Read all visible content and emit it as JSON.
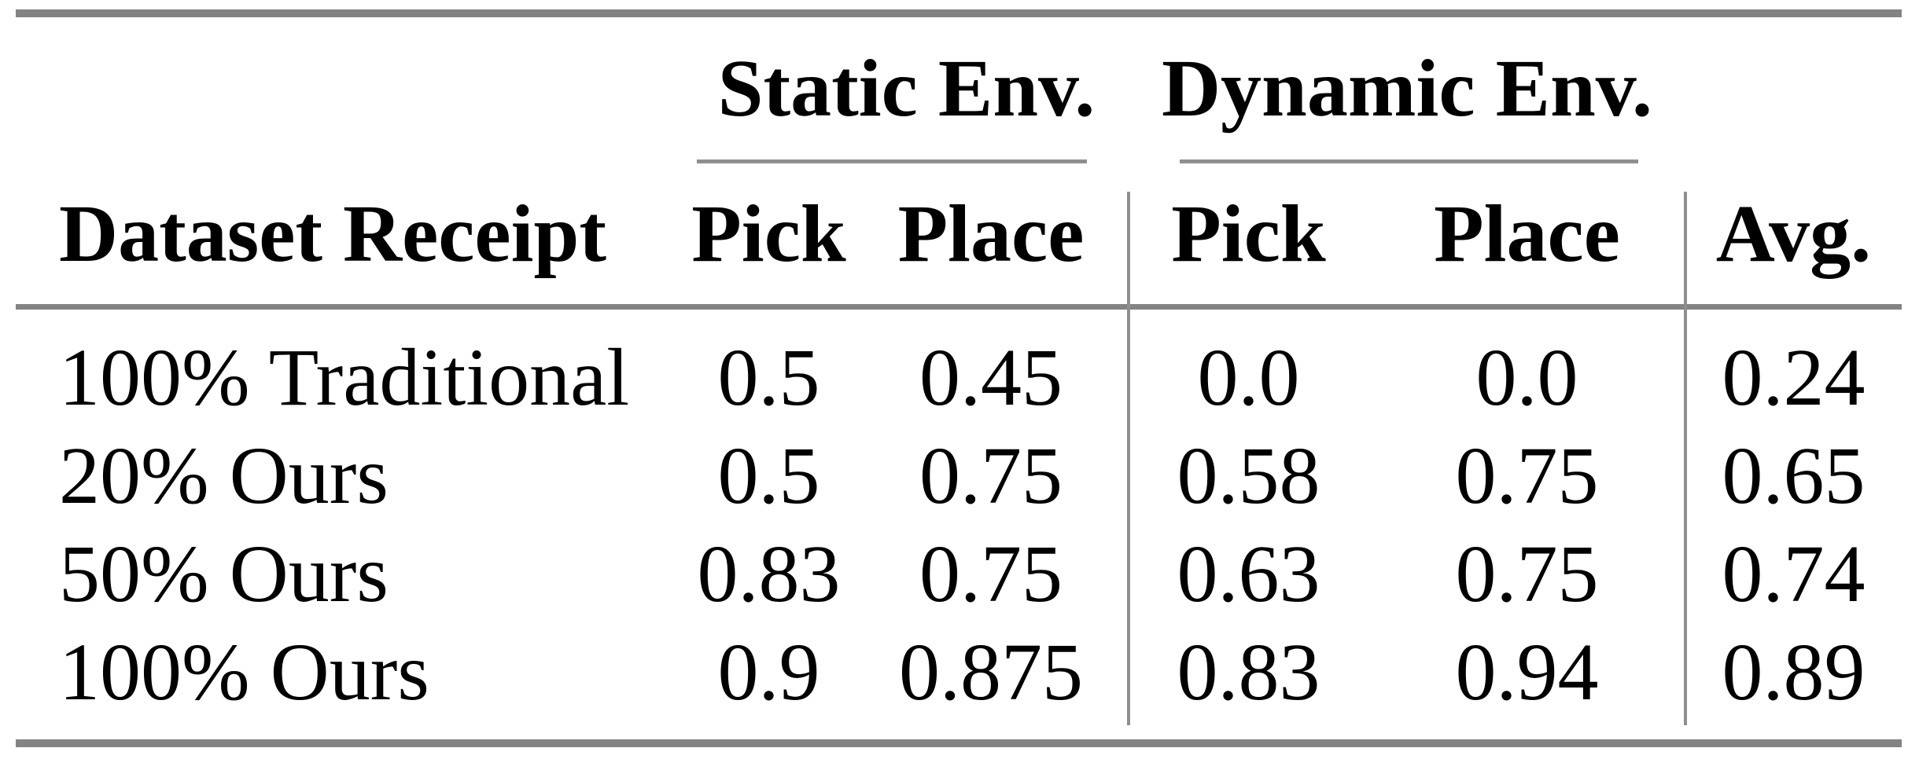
{
  "colors": {
    "text": "#000000",
    "background": "#ffffff",
    "thick_rule_gray": "#838383",
    "thin_rule_gray": "#8f8f8f"
  },
  "table": {
    "group_headers": [
      {
        "label": "Static Env."
      },
      {
        "label": "Dynamic Env."
      }
    ],
    "columns": [
      "Dataset Receipt",
      "Pick",
      "Place",
      "Pick",
      "Place",
      "Avg."
    ],
    "rows": [
      {
        "cells": [
          "100% Traditional",
          "0.5",
          "0.45",
          "0.0",
          "0.0",
          "0.24"
        ]
      },
      {
        "cells": [
          "20% Ours",
          "0.5",
          "0.75",
          "0.58",
          "0.75",
          "0.65"
        ]
      },
      {
        "cells": [
          "50% Ours",
          "0.83",
          "0.75",
          "0.63",
          "0.75",
          "0.74"
        ]
      },
      {
        "cells": [
          "100% Ours",
          "0.9",
          "0.875",
          "0.83",
          "0.94",
          "0.89"
        ]
      }
    ]
  },
  "chart_data": {
    "type": "table",
    "title": "",
    "column_groups": [
      "",
      "Static Env.",
      "Static Env.",
      "Dynamic Env.",
      "Dynamic Env.",
      ""
    ],
    "columns": [
      "Dataset Receipt",
      "Pick",
      "Place",
      "Pick",
      "Place",
      "Avg."
    ],
    "rows": [
      [
        "100% Traditional",
        0.5,
        0.45,
        0.0,
        0.0,
        0.24
      ],
      [
        "20% Ours",
        0.5,
        0.75,
        0.58,
        0.75,
        0.65
      ],
      [
        "50% Ours",
        0.83,
        0.75,
        0.63,
        0.75,
        0.74
      ],
      [
        "100% Ours",
        0.9,
        0.875,
        0.83,
        0.94,
        0.89
      ]
    ]
  }
}
